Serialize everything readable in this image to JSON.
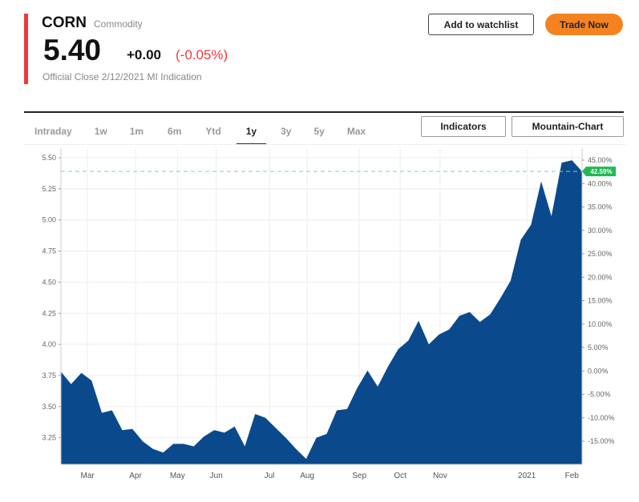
{
  "header": {
    "symbol": "CORN",
    "type": "Commodity",
    "price": "5.40",
    "change": "+0.00",
    "change_pct": "(-0.05%)",
    "close_note": "Official Close 2/12/2021 MI Indication"
  },
  "actions": {
    "watchlist": "Add to watchlist",
    "trade": "Trade Now"
  },
  "tabs": [
    {
      "label": "Intraday"
    },
    {
      "label": "1w"
    },
    {
      "label": "1m"
    },
    {
      "label": "6m"
    },
    {
      "label": "Ytd"
    },
    {
      "label": "1y",
      "active": true
    },
    {
      "label": "3y"
    },
    {
      "label": "5y"
    },
    {
      "label": "Max"
    }
  ],
  "chart_buttons": {
    "indicators": "Indicators",
    "chart_type": "Mountain-Chart"
  },
  "colors": {
    "area": "#0a4a8c",
    "accent": "#f58220",
    "negative": "#f0393c",
    "badge": "#1fb954"
  },
  "chart_data": {
    "type": "area",
    "title": "CORN 1y",
    "values": [
      3.78,
      3.68,
      3.77,
      3.71,
      3.45,
      3.47,
      3.31,
      3.32,
      3.22,
      3.16,
      3.13,
      3.2,
      3.2,
      3.18,
      3.26,
      3.31,
      3.29,
      3.34,
      3.18,
      3.44,
      3.41,
      3.33,
      3.25,
      3.16,
      3.08,
      3.25,
      3.28,
      3.47,
      3.48,
      3.65,
      3.79,
      3.66,
      3.82,
      3.96,
      4.03,
      4.19,
      4.0,
      4.08,
      4.12,
      4.23,
      4.26,
      4.18,
      4.24,
      4.37,
      4.51,
      4.84,
      4.96,
      5.31,
      5.03,
      5.46,
      5.48,
      5.39
    ],
    "x_labels": [
      {
        "label": "Mar",
        "index": 2.6
      },
      {
        "label": "Apr",
        "index": 7.3
      },
      {
        "label": "May",
        "index": 11.4
      },
      {
        "label": "Jun",
        "index": 15.2
      },
      {
        "label": "Jul",
        "index": 20.4
      },
      {
        "label": "Aug",
        "index": 24.1
      },
      {
        "label": "Sep",
        "index": 29.2
      },
      {
        "label": "Oct",
        "index": 33.2
      },
      {
        "label": "Nov",
        "index": 37.1
      },
      {
        "label": "2021",
        "index": 45.6
      },
      {
        "label": "Feb",
        "index": 50.0
      }
    ],
    "y_ticks": [
      "5.50",
      "5.25",
      "5.00",
      "4.75",
      "4.50",
      "4.25",
      "4.00",
      "3.75",
      "3.50",
      "3.25"
    ],
    "y2_ticks": [
      "45.00%",
      "40.00%",
      "35.00%",
      "30.00%",
      "25.00%",
      "20.00%",
      "15.00%",
      "10.00%",
      "5.00%",
      "0.00%",
      "-5.00%",
      "-10.00%",
      "-15.00%"
    ],
    "ylim": [
      3.0,
      5.5
    ],
    "last_value": 5.39,
    "last_pct_label": "42.59%",
    "grid": true
  }
}
